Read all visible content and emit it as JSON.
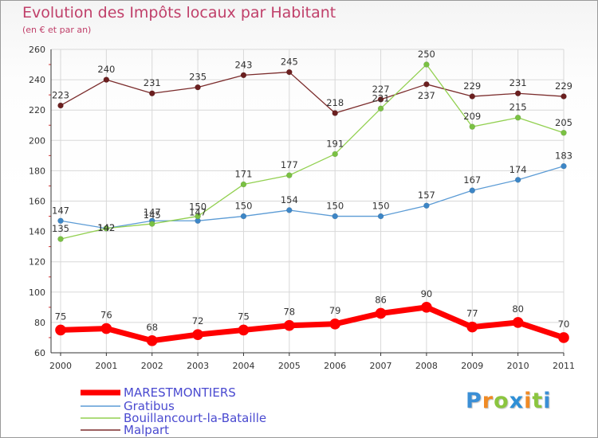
{
  "chart_data": {
    "type": "line",
    "title": "Evolution des Impôts locaux par Habitant",
    "subtitle": "(en € et par an)",
    "xlabel": "",
    "ylabel": "",
    "ylim": [
      60,
      260
    ],
    "yticks": [
      60,
      80,
      100,
      120,
      140,
      160,
      180,
      200,
      220,
      240,
      260
    ],
    "grid": true,
    "legend_position": "bottom-left",
    "x": [
      "2000",
      "2001",
      "2002",
      "2003",
      "2004",
      "2005",
      "2006",
      "2007",
      "2008",
      "2009",
      "2010",
      "2011"
    ],
    "series": [
      {
        "name": "MARESTMONTIERS",
        "color": "#ff0000",
        "line_width": 7,
        "marker_radius": 6.5,
        "values": [
          75,
          76,
          68,
          72,
          75,
          78,
          79,
          86,
          90,
          77,
          80,
          70
        ]
      },
      {
        "name": "Gratibus",
        "color": "#5b9bd5",
        "marker_fill": "#3d86c6",
        "line_width": 1.3,
        "marker_radius": 3.5,
        "values": [
          147,
          142,
          147,
          147,
          150,
          154,
          150,
          150,
          157,
          167,
          174,
          183
        ]
      },
      {
        "name": "Bouillancourt-la-Bataille",
        "color": "#92d050",
        "marker_fill": "#7ac143",
        "line_width": 1.3,
        "marker_radius": 3.5,
        "values": [
          135,
          142,
          145,
          150,
          171,
          177,
          191,
          221,
          250,
          209,
          215,
          205
        ]
      },
      {
        "name": "Malpart",
        "color": "#7b2c2c",
        "marker_fill": "#6b1f1f",
        "line_width": 1.3,
        "marker_radius": 3.5,
        "values": [
          223,
          240,
          231,
          235,
          243,
          245,
          218,
          227,
          237,
          229,
          231,
          229
        ]
      }
    ]
  },
  "watermark": {
    "letters": [
      "P",
      "r",
      "o",
      "x",
      "i",
      "t",
      "i"
    ]
  },
  "colors": {
    "title": "#c0406a",
    "grid": "#d8d8d8",
    "axis": "#333333",
    "legend_text": "#4a4ad0"
  }
}
